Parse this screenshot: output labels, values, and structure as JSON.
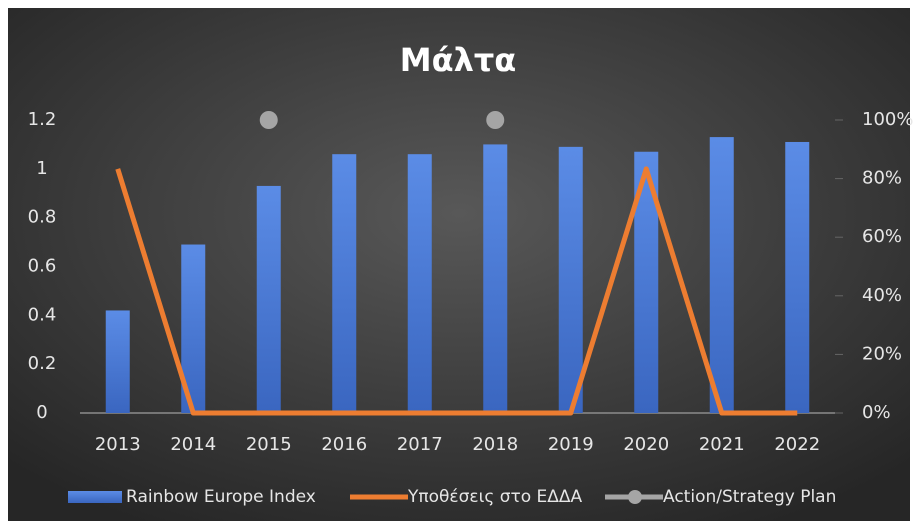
{
  "chart_data": {
    "type": "combo",
    "title": "Μάλτα",
    "categories": [
      "2013",
      "2014",
      "2015",
      "2016",
      "2017",
      "2018",
      "2019",
      "2020",
      "2021",
      "2022"
    ],
    "series": [
      {
        "name": "Rainbow Europe Index",
        "type": "bar",
        "color": "#4a7bd6",
        "values": [
          0.42,
          0.69,
          0.93,
          1.06,
          1.06,
          1.1,
          1.09,
          1.07,
          1.13,
          1.11
        ]
      },
      {
        "name": "Υποθέσεις στο ΕΔΔΑ",
        "type": "line",
        "color": "#ed7d31",
        "values": [
          1,
          0,
          0,
          0,
          0,
          0,
          0,
          1,
          0,
          0
        ]
      },
      {
        "name": "Action/Strategy Plan",
        "type": "scatter",
        "color": "#a5a5a5",
        "axis": "y2",
        "values": [
          null,
          null,
          100,
          null,
          null,
          100,
          null,
          null,
          null,
          null
        ]
      }
    ],
    "ylim": [
      0,
      1.2
    ],
    "yticks": [
      0,
      0.2,
      0.4,
      0.6,
      0.8,
      1,
      1.2
    ],
    "y2lim": [
      0,
      100
    ],
    "y2ticks": [
      {
        "value": 0,
        "label": "0%"
      },
      {
        "value": 20,
        "label": "20%"
      },
      {
        "value": 40,
        "label": "40%"
      },
      {
        "value": 60,
        "label": "60%"
      },
      {
        "value": 80,
        "label": "80%"
      },
      {
        "value": 100,
        "label": "100%"
      }
    ],
    "grid": false,
    "legend": "bottom"
  }
}
